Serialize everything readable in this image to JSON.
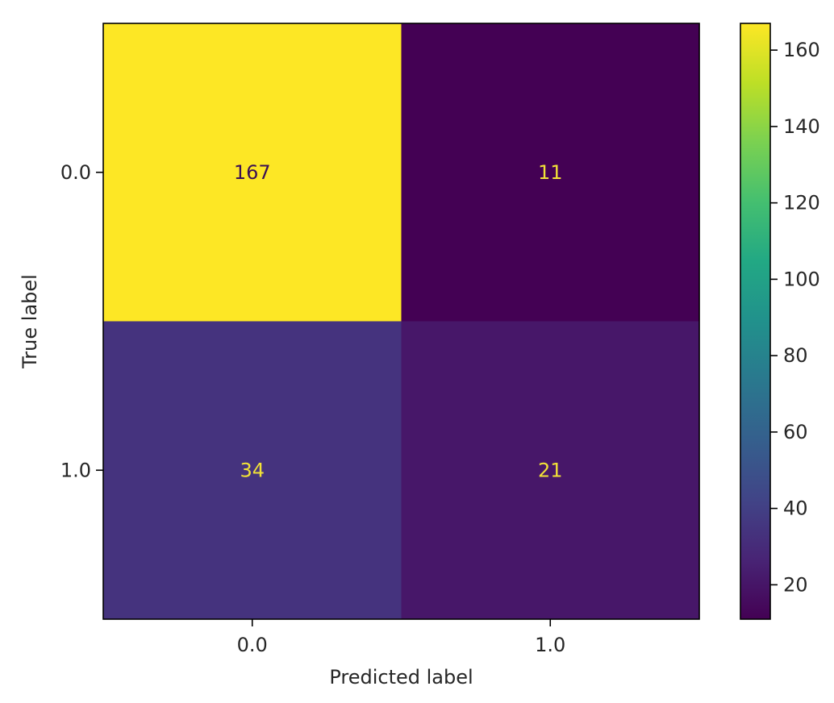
{
  "chart_data": {
    "type": "heatmap",
    "title": "",
    "xlabel": "Predicted label",
    "ylabel": "True label",
    "x_categories": [
      "0.0",
      "1.0"
    ],
    "y_categories": [
      "0.0",
      "1.0"
    ],
    "matrix": [
      [
        167,
        11
      ],
      [
        34,
        21
      ]
    ],
    "colormap": "viridis",
    "colorbar": {
      "min": 11,
      "max": 167,
      "ticks": [
        20,
        40,
        60,
        80,
        100,
        120,
        140,
        160
      ]
    },
    "grid": false
  }
}
